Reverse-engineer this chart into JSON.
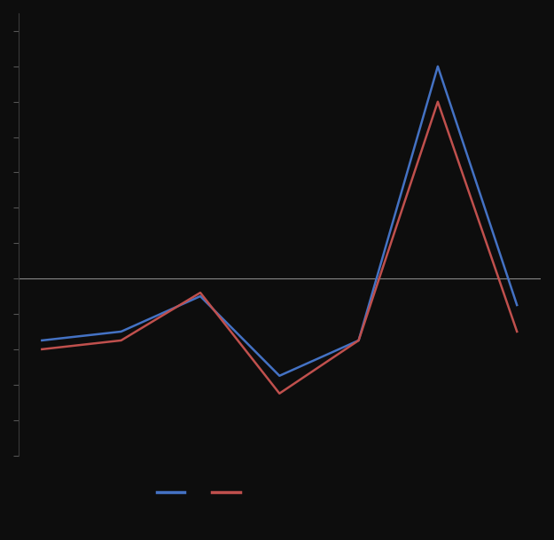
{
  "x": [
    1,
    2,
    3,
    4,
    5,
    6,
    7
  ],
  "blue_y": [
    -3.5,
    -3.0,
    -1.0,
    -5.5,
    -3.5,
    12.0,
    -1.5
  ],
  "red_y": [
    -4.0,
    -3.5,
    -0.8,
    -6.5,
    -3.5,
    10.0,
    -3.0
  ],
  "blue_color": "#4472C4",
  "red_color": "#C0504D",
  "background_color": "#0D0D0D",
  "line_color": "#3A3A3A",
  "zero_line_color": "#888888",
  "tick_color": "#555555",
  "ylim": [
    -10,
    15
  ],
  "yticks": [
    -10,
    -8,
    -6,
    -4,
    -2,
    0,
    2,
    4,
    6,
    8,
    10,
    12,
    14
  ],
  "line_width": 1.8
}
